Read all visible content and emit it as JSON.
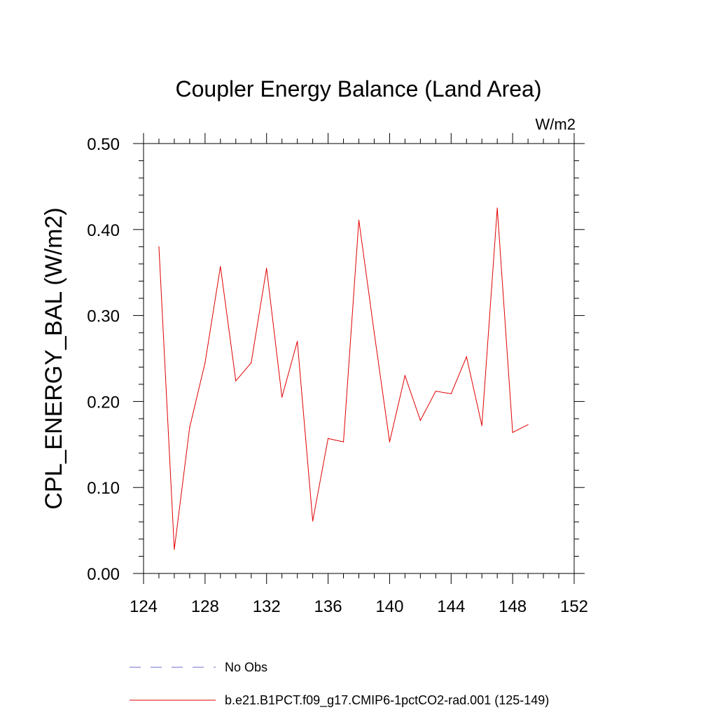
{
  "chart_data": {
    "type": "line",
    "title": "Coupler Energy Balance (Land Area)",
    "units": "W/m2",
    "ylabel": "CPL_ENERGY_BAL  (W/m2)",
    "xlabel": "",
    "xlim": [
      124,
      152
    ],
    "ylim": [
      0.0,
      0.5
    ],
    "x_ticks": [
      124,
      128,
      132,
      136,
      140,
      144,
      148,
      152
    ],
    "x_tick_labels": [
      "124",
      "128",
      "132",
      "136",
      "140",
      "144",
      "148",
      "152"
    ],
    "y_ticks": [
      0.0,
      0.1,
      0.2,
      0.3,
      0.4,
      0.5
    ],
    "y_tick_labels": [
      "0.00",
      "0.10",
      "0.20",
      "0.30",
      "0.40",
      "0.50"
    ],
    "grid": false,
    "legend_position": "bottom",
    "series": [
      {
        "name": "b.e21.B1PCT.f09_g17.CMIP6-1pctCO2-rad.001 (125-149)",
        "color": "#e00000",
        "style": "solid",
        "x": [
          125,
          126,
          127,
          128,
          129,
          130,
          131,
          132,
          133,
          134,
          135,
          136,
          137,
          138,
          139,
          140,
          141,
          142,
          143,
          144,
          145,
          146,
          147,
          148,
          149
        ],
        "values": [
          0.38,
          0.028,
          0.17,
          0.245,
          0.357,
          0.224,
          0.245,
          0.355,
          0.205,
          0.27,
          0.061,
          0.157,
          0.153,
          0.411,
          0.28,
          0.153,
          0.23,
          0.178,
          0.212,
          0.209,
          0.252,
          0.172,
          0.425,
          0.164,
          0.173
        ]
      }
    ],
    "legend": [
      {
        "label": "No Obs",
        "color": "#6b6bcc",
        "style": "dashed"
      },
      {
        "label": "b.e21.B1PCT.f09_g17.CMIP6-1pctCO2-rad.001 (125-149)",
        "color": "#e00000",
        "style": "solid"
      }
    ]
  }
}
